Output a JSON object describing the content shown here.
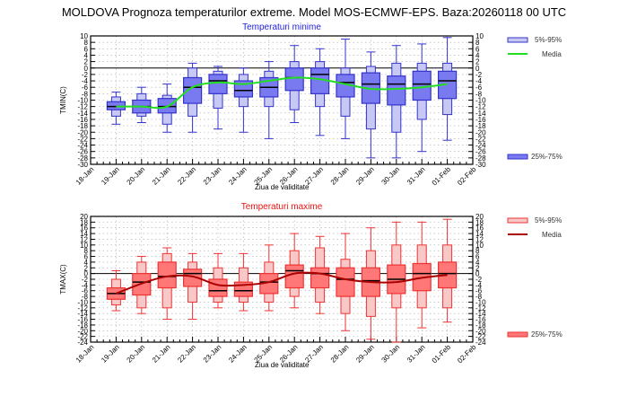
{
  "title": "MOLDOVA  Prognoza temperaturilor extreme.  Model MOS-ECMWF-EPS. Baza:20260118 00 UTC",
  "chart_data": [
    {
      "type": "boxplot",
      "title": "Temperaturi minime",
      "title_color": "#2222dd",
      "ylabel": "TMIN(C)",
      "xlabel": "Ziua de validitate",
      "ylim": [
        -30,
        10
      ],
      "ytick_step": 2,
      "grid": true,
      "x_ticks": [
        "18-Jan",
        "19-Jan",
        "20-Jan",
        "21-Jan",
        "22-Jan",
        "23-Jan",
        "24-Jan",
        "25-Jan",
        "26-Jan",
        "27-Jan",
        "28-Jan",
        "29-Jan",
        "30-Jan",
        "31-Jan",
        "01-Feb",
        "02-Feb"
      ],
      "colors": {
        "box_edge": "#3333cc",
        "outer_fill": "#c8c8f4",
        "inner_fill": "#7a7af0",
        "media": "#22dd22",
        "median": "#000000"
      },
      "legend": {
        "outer": "5%-95%",
        "media": "Media",
        "inner": "25%-75%"
      },
      "boxes": [
        {
          "day": "19-Jan",
          "min": -17.5,
          "p5": -15,
          "q1": -13,
          "median": -12,
          "q3": -10.5,
          "p95": -9,
          "max": -7.5
        },
        {
          "day": "20-Jan",
          "min": -17,
          "p5": -15,
          "q1": -14,
          "median": -12,
          "q3": -10,
          "p95": -8,
          "max": -6
        },
        {
          "day": "21-Jan",
          "min": -20,
          "p5": -17.5,
          "q1": -14,
          "median": -12,
          "q3": -9.5,
          "p95": -8.5,
          "max": -5
        },
        {
          "day": "22-Jan",
          "min": -20,
          "p5": -15,
          "q1": -11,
          "median": -6,
          "q3": -3,
          "p95": 0,
          "max": 1.5
        },
        {
          "day": "23-Jan",
          "min": -19,
          "p5": -12.5,
          "q1": -8,
          "median": -4,
          "q3": -2,
          "p95": -1,
          "max": 0.5
        },
        {
          "day": "24-Jan",
          "min": -20,
          "p5": -12,
          "q1": -9,
          "median": -7,
          "q3": -4,
          "p95": -2,
          "max": 0
        },
        {
          "day": "25-Jan",
          "min": -22,
          "p5": -12,
          "q1": -9,
          "median": -6,
          "q3": -3,
          "p95": -1,
          "max": 2
        },
        {
          "day": "26-Jan",
          "min": -17,
          "p5": -13,
          "q1": -7,
          "median": -3,
          "q3": 0,
          "p95": 2,
          "max": 7
        },
        {
          "day": "27-Jan",
          "min": -21,
          "p5": -12,
          "q1": -8,
          "median": -2,
          "q3": 0,
          "p95": 2,
          "max": 6
        },
        {
          "day": "28-Jan",
          "min": -22,
          "p5": -15,
          "q1": -9,
          "median": -4.5,
          "q3": -2,
          "p95": 0,
          "max": 9
        },
        {
          "day": "29-Jan",
          "min": -28,
          "p5": -19,
          "q1": -11,
          "median": -5,
          "q3": -1.5,
          "p95": 0.5,
          "max": 5
        },
        {
          "day": "30-Jan",
          "min": -28,
          "p5": -20,
          "q1": -11.5,
          "median": -5,
          "q3": -2.5,
          "p95": 1.5,
          "max": 7
        },
        {
          "day": "31-Jan",
          "min": -26,
          "p5": -16,
          "q1": -10,
          "median": -5,
          "q3": -1,
          "p95": 1.5,
          "max": 7.5
        },
        {
          "day": "01-Feb",
          "min": -22.5,
          "p5": -14.5,
          "q1": -9.5,
          "median": -4,
          "q3": -1,
          "p95": 1.5,
          "max": 9.5
        }
      ],
      "media": [
        -12,
        -12,
        -12,
        -6,
        -4.5,
        -5,
        -4,
        -3,
        -3.5,
        -5,
        -6.5,
        -6.5,
        -6,
        -5
      ]
    },
    {
      "type": "boxplot",
      "title": "Temperaturi maxime",
      "title_color": "#ee1111",
      "ylabel": "TMAX(C)",
      "xlabel": "Ziua de validitate",
      "ylim": [
        -24,
        20
      ],
      "ytick_step": 2,
      "grid": true,
      "x_ticks": [
        "18-Jan",
        "19-Jan",
        "20-Jan",
        "21-Jan",
        "22-Jan",
        "23-Jan",
        "24-Jan",
        "25-Jan",
        "26-Jan",
        "27-Jan",
        "28-Jan",
        "29-Jan",
        "30-Jan",
        "31-Jan",
        "01-Feb",
        "02-Feb"
      ],
      "colors": {
        "box_edge": "#ee3333",
        "outer_fill": "#f8c8c8",
        "inner_fill": "#ff7777",
        "media": "#aa0000",
        "median": "#000000"
      },
      "legend": {
        "outer": "5%-95%",
        "media": "Media",
        "inner": "25%-75%"
      },
      "boxes": [
        {
          "day": "19-Jan",
          "min": -13,
          "p5": -11,
          "q1": -9,
          "median": -7,
          "q3": -5,
          "p95": -2,
          "max": 1
        },
        {
          "day": "20-Jan",
          "min": -14,
          "p5": -12,
          "q1": -7.5,
          "median": -3,
          "q3": 0,
          "p95": 4,
          "max": 6
        },
        {
          "day": "21-Jan",
          "min": -16,
          "p5": -12,
          "q1": -5,
          "median": -1,
          "q3": 4,
          "p95": 7,
          "max": 9
        },
        {
          "day": "22-Jan",
          "min": -16,
          "p5": -10,
          "q1": -4.5,
          "median": 0,
          "q3": 1.5,
          "p95": 4,
          "max": 7
        },
        {
          "day": "23-Jan",
          "min": -12,
          "p5": -10,
          "q1": -8,
          "median": -6,
          "q3": -2,
          "p95": 2,
          "max": 7
        },
        {
          "day": "24-Jan",
          "min": -13,
          "p5": -10,
          "q1": -8,
          "median": -6,
          "q3": -3,
          "p95": 2,
          "max": 7
        },
        {
          "day": "25-Jan",
          "min": -13,
          "p5": -10,
          "q1": -7,
          "median": -3,
          "q3": 0,
          "p95": 4,
          "max": 10
        },
        {
          "day": "26-Jan",
          "min": -12,
          "p5": -8,
          "q1": -5,
          "median": 1,
          "q3": 3,
          "p95": 8,
          "max": 14
        },
        {
          "day": "27-Jan",
          "min": -14,
          "p5": -10,
          "q1": -5,
          "median": 0,
          "q3": 2,
          "p95": 9,
          "max": 13
        },
        {
          "day": "28-Jan",
          "min": -20,
          "p5": -14,
          "q1": -8,
          "median": -2,
          "q3": 2,
          "p95": 5,
          "max": 14
        },
        {
          "day": "29-Jan",
          "min": -23,
          "p5": -15,
          "q1": -8,
          "median": -2.5,
          "q3": 2,
          "p95": 8,
          "max": 16
        },
        {
          "day": "30-Jan",
          "min": -24,
          "p5": -12,
          "q1": -7,
          "median": -2,
          "q3": 3,
          "p95": 10,
          "max": 18
        },
        {
          "day": "31-Jan",
          "min": -19,
          "p5": -12,
          "q1": -6,
          "median": 0,
          "q3": 3.5,
          "p95": 10,
          "max": 18
        },
        {
          "day": "01-Feb",
          "min": -17,
          "p5": -12,
          "q1": -5,
          "median": 0,
          "q3": 4,
          "p95": 10,
          "max": 19
        }
      ],
      "media": [
        -7,
        -3.5,
        -1,
        -1,
        -4,
        -4,
        -3,
        0,
        0,
        -2,
        -3,
        -3,
        -1.5,
        -0.5
      ]
    }
  ]
}
